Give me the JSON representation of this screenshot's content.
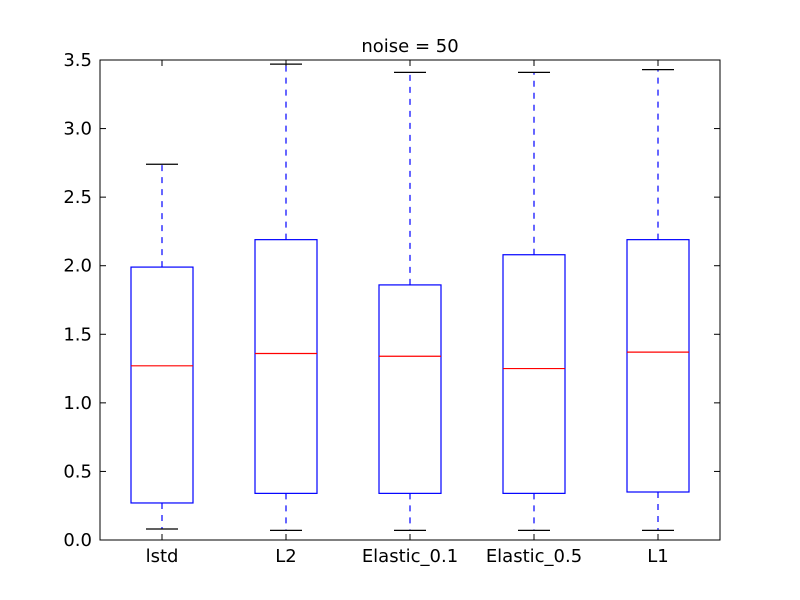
{
  "chart_data": {
    "type": "box",
    "title": "noise = 50",
    "xlabel": "",
    "ylabel": "",
    "ylim": [
      0.0,
      3.5
    ],
    "yticks": [
      "0.0",
      "0.5",
      "1.0",
      "1.5",
      "2.0",
      "2.5",
      "3.0",
      "3.5"
    ],
    "grid": false,
    "categories": [
      "lstd",
      "L2",
      "Elastic_0.1",
      "Elastic_0.5",
      "L1"
    ],
    "boxes": [
      {
        "label": "lstd",
        "whisker_low": 0.08,
        "q1": 0.27,
        "median": 1.27,
        "q3": 1.99,
        "whisker_high": 2.74
      },
      {
        "label": "L2",
        "whisker_low": 0.07,
        "q1": 0.34,
        "median": 1.36,
        "q3": 2.19,
        "whisker_high": 3.47
      },
      {
        "label": "Elastic_0.1",
        "whisker_low": 0.07,
        "q1": 0.34,
        "median": 1.34,
        "q3": 1.86,
        "whisker_high": 3.41
      },
      {
        "label": "Elastic_0.5",
        "whisker_low": 0.07,
        "q1": 0.34,
        "median": 1.25,
        "q3": 2.08,
        "whisker_high": 3.41
      },
      {
        "label": "L1",
        "whisker_low": 0.07,
        "q1": 0.35,
        "median": 1.37,
        "q3": 2.19,
        "whisker_high": 3.43
      }
    ],
    "colors": {
      "box": "#0000ff",
      "median": "#ff0000",
      "whisker": "#0000ff",
      "cap": "#000000",
      "axes": "#000000"
    }
  }
}
